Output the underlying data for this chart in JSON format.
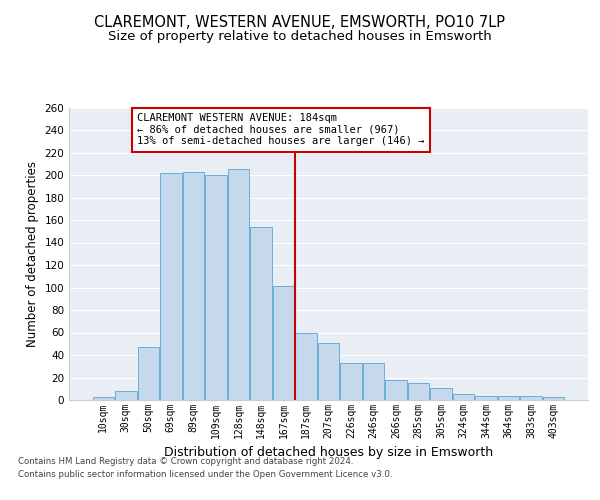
{
  "title": "CLAREMONT, WESTERN AVENUE, EMSWORTH, PO10 7LP",
  "subtitle": "Size of property relative to detached houses in Emsworth",
  "xlabel": "Distribution of detached houses by size in Emsworth",
  "ylabel": "Number of detached properties",
  "categories": [
    "10sqm",
    "30sqm",
    "50sqm",
    "69sqm",
    "89sqm",
    "109sqm",
    "128sqm",
    "148sqm",
    "167sqm",
    "187sqm",
    "207sqm",
    "226sqm",
    "246sqm",
    "266sqm",
    "285sqm",
    "305sqm",
    "324sqm",
    "344sqm",
    "364sqm",
    "383sqm",
    "403sqm"
  ],
  "values": [
    3,
    8,
    47,
    202,
    203,
    200,
    205,
    154,
    101,
    60,
    51,
    33,
    33,
    18,
    15,
    11,
    5,
    4,
    4,
    4,
    3
  ],
  "bar_color": "#c6d9ec",
  "bar_edge_color": "#6aaed6",
  "vline_color": "#cc0000",
  "annotation_text": "CLAREMONT WESTERN AVENUE: 184sqm\n← 86% of detached houses are smaller (967)\n13% of semi-detached houses are larger (146) →",
  "annotation_box_color": "#ffffff",
  "annotation_box_edge_color": "#cc0000",
  "ylim": [
    0,
    260
  ],
  "yticks": [
    0,
    20,
    40,
    60,
    80,
    100,
    120,
    140,
    160,
    180,
    200,
    220,
    240,
    260
  ],
  "background_color": "#e8eef4",
  "footer_line1": "Contains HM Land Registry data © Crown copyright and database right 2024.",
  "footer_line2": "Contains public sector information licensed under the Open Government Licence v3.0.",
  "title_fontsize": 10.5,
  "subtitle_fontsize": 9.5,
  "xlabel_fontsize": 9,
  "ylabel_fontsize": 8.5
}
